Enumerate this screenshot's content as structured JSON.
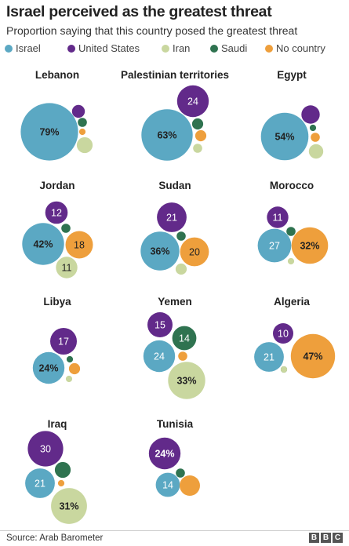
{
  "title": "Israel perceived as the greatest threat",
  "subtitle": "Proportion saying that this country posed the greatest threat",
  "source": "Source: Arab Barometer",
  "logo": [
    "B",
    "B",
    "C"
  ],
  "colors": {
    "Israel": "#5ba8c3",
    "United States": "#622a8a",
    "Iran": "#c9d79f",
    "Saudi": "#2f7350",
    "No country": "#ee9f3c"
  },
  "chart_data": {
    "type": "bubble-grid",
    "title": "Israel perceived as the greatest threat",
    "subtitle": "Proportion saying that this country posed the greatest threat",
    "legend": [
      "Israel",
      "United States",
      "Iran",
      "Saudi",
      "No country"
    ],
    "value_unit": "%",
    "panels": [
      {
        "name": "Lebanon",
        "values": {
          "Israel": 79,
          "United States": 4,
          "Saudi": 2,
          "No country": 1,
          "Iran": 6
        },
        "labels": {
          "Israel": "79%"
        }
      },
      {
        "name": "Palestinian territories",
        "values": {
          "Israel": 63,
          "United States": 24,
          "Saudi": 3,
          "No country": 3,
          "Iran": 2
        },
        "labels": {
          "Israel": "63%",
          "United States": "24"
        }
      },
      {
        "name": "Egypt",
        "values": {
          "Israel": 54,
          "United States": 8,
          "Saudi": 1,
          "No country": 2,
          "Iran": 5
        },
        "labels": {
          "Israel": "54%"
        }
      },
      {
        "name": "Jordan",
        "values": {
          "Israel": 42,
          "United States": 12,
          "Saudi": 2,
          "No country": 18,
          "Iran": 11
        },
        "labels": {
          "Israel": "42%",
          "United States": "12",
          "No country": "18",
          "Iran": "11"
        }
      },
      {
        "name": "Sudan",
        "values": {
          "Israel": 36,
          "United States": 21,
          "Saudi": 2,
          "No country": 20,
          "Iran": 3
        },
        "labels": {
          "Israel": "36%",
          "United States": "21",
          "No country": "20"
        }
      },
      {
        "name": "Morocco",
        "values": {
          "Israel": 27,
          "United States": 11,
          "Saudi": 2,
          "No country": 32,
          "Iran": 1
        },
        "labels": {
          "Israel": "27",
          "United States": "11",
          "No country": "32%"
        }
      },
      {
        "name": "Libya",
        "values": {
          "Israel": 24,
          "United States": 17,
          "Saudi": 1,
          "No country": 3,
          "Iran": 1
        },
        "labels": {
          "Israel": "24%",
          "United States": "17"
        }
      },
      {
        "name": "Yemen",
        "values": {
          "Israel": 24,
          "United States": 15,
          "Saudi": 14,
          "No country": 2,
          "Iran": 33
        },
        "labels": {
          "Israel": "24",
          "United States": "15",
          "Saudi": "14",
          "Iran": "33%"
        }
      },
      {
        "name": "Algeria",
        "values": {
          "Israel": 21,
          "United States": 10,
          "Saudi": 1,
          "No country": 47,
          "Iran": 1
        },
        "labels": {
          "Israel": "21",
          "United States": "10",
          "No country": "47%"
        }
      },
      {
        "name": "Iraq",
        "values": {
          "Israel": 21,
          "United States": 30,
          "Saudi": 6,
          "No country": 1,
          "Iran": 31
        },
        "labels": {
          "Israel": "21",
          "United States": "30",
          "Iran": "31%"
        }
      },
      {
        "name": "Tunisia",
        "values": {
          "Israel": 14,
          "United States": 24,
          "Saudi": 2,
          "No country": 10,
          "Iran": 0
        },
        "labels": {
          "Israel": "14",
          "United States": "24%"
        }
      }
    ]
  }
}
